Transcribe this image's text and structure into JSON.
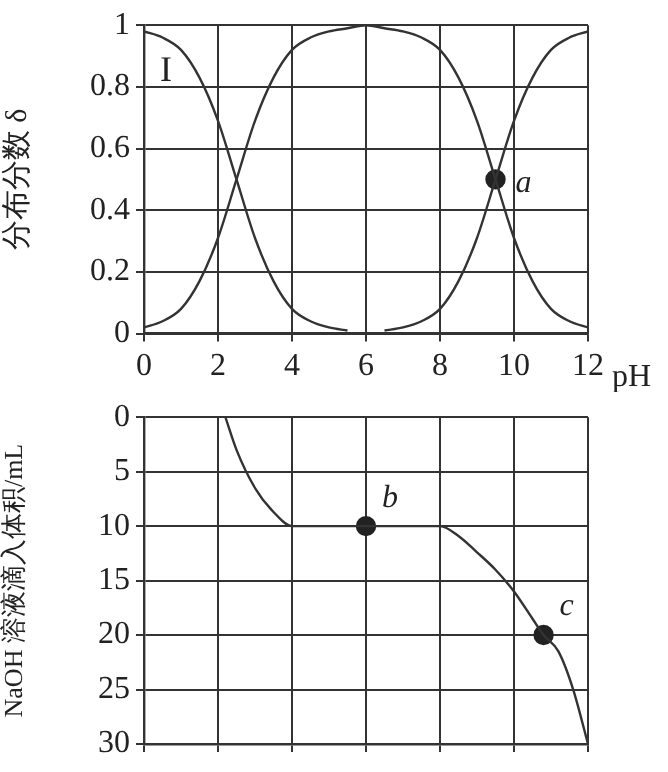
{
  "chart_data": [
    {
      "type": "line",
      "ylabel": "分布分数 δ",
      "xlabel": "pH",
      "xlim": [
        0,
        12
      ],
      "xticks": [
        0,
        2,
        4,
        6,
        8,
        10,
        12
      ],
      "ylim": [
        0,
        1
      ],
      "yticks": [
        0,
        0.2,
        0.4,
        0.6,
        0.8,
        1
      ],
      "grid": true,
      "series": [
        {
          "name": "I",
          "color": "#333333",
          "marker": "none",
          "x": [
            0,
            0.5,
            1,
            1.5,
            2,
            2.5,
            3,
            3.5,
            4,
            4.5,
            5,
            5.5
          ],
          "values": [
            0.98,
            0.96,
            0.92,
            0.83,
            0.69,
            0.5,
            0.31,
            0.17,
            0.08,
            0.04,
            0.02,
            0.01
          ]
        },
        {
          "color": "#333333",
          "marker": "none",
          "x": [
            0,
            0.5,
            1,
            1.5,
            2,
            2.5,
            3,
            3.5,
            4,
            4.5,
            5,
            5.5,
            6,
            6.5,
            7,
            7.5,
            8,
            8.5,
            9,
            9.5,
            10,
            10.5,
            11,
            11.5,
            12
          ],
          "values": [
            0.02,
            0.04,
            0.08,
            0.17,
            0.31,
            0.5,
            0.69,
            0.83,
            0.92,
            0.96,
            0.98,
            0.99,
            1,
            0.99,
            0.98,
            0.96,
            0.92,
            0.83,
            0.69,
            0.5,
            0.31,
            0.17,
            0.08,
            0.04,
            0.02
          ]
        },
        {
          "color": "#333333",
          "marker": "none",
          "x": [
            6.5,
            7,
            7.5,
            8,
            8.5,
            9,
            9.5,
            10,
            10.5,
            11,
            11.5,
            12
          ],
          "values": [
            0.01,
            0.02,
            0.04,
            0.08,
            0.17,
            0.31,
            0.5,
            0.69,
            0.83,
            0.92,
            0.96,
            0.98
          ]
        },
        {
          "type": "scatter",
          "color": "#222222",
          "marker": "circle",
          "x": [
            9.5
          ],
          "values": [
            0.5
          ]
        }
      ],
      "annotations": [
        {
          "text": "a",
          "x": 9.5,
          "y": 0.5
        }
      ]
    },
    {
      "type": "line",
      "ylabel": "NaOH 溶液滴入体积/mL",
      "xlim": [
        0,
        12
      ],
      "xticks": [
        0,
        2,
        4,
        6,
        8,
        10,
        12
      ],
      "ylim": [
        30,
        0
      ],
      "yticks": [
        0,
        5,
        10,
        15,
        20,
        25,
        30
      ],
      "grid": true,
      "tick_labels": "y",
      "series": [
        {
          "color": "#333333",
          "marker": "none",
          "x": [
            2.2,
            2.5,
            3,
            3.5,
            4,
            6,
            8,
            8.5,
            9,
            9.5,
            10,
            10.5,
            10.8,
            11.2,
            11.6,
            12
          ],
          "values": [
            0,
            3,
            6.5,
            8.7,
            10,
            10,
            10,
            10.9,
            12.4,
            14,
            16,
            18.5,
            20,
            21.5,
            25,
            30
          ]
        },
        {
          "type": "scatter",
          "color": "#222222",
          "marker": "circle",
          "x": [
            6,
            10.8
          ],
          "values": [
            10,
            20
          ]
        }
      ],
      "annotations": [
        {
          "text": "b",
          "x": 6,
          "y": 10
        },
        {
          "text": "c",
          "x": 10.8,
          "y": 20
        }
      ]
    }
  ]
}
